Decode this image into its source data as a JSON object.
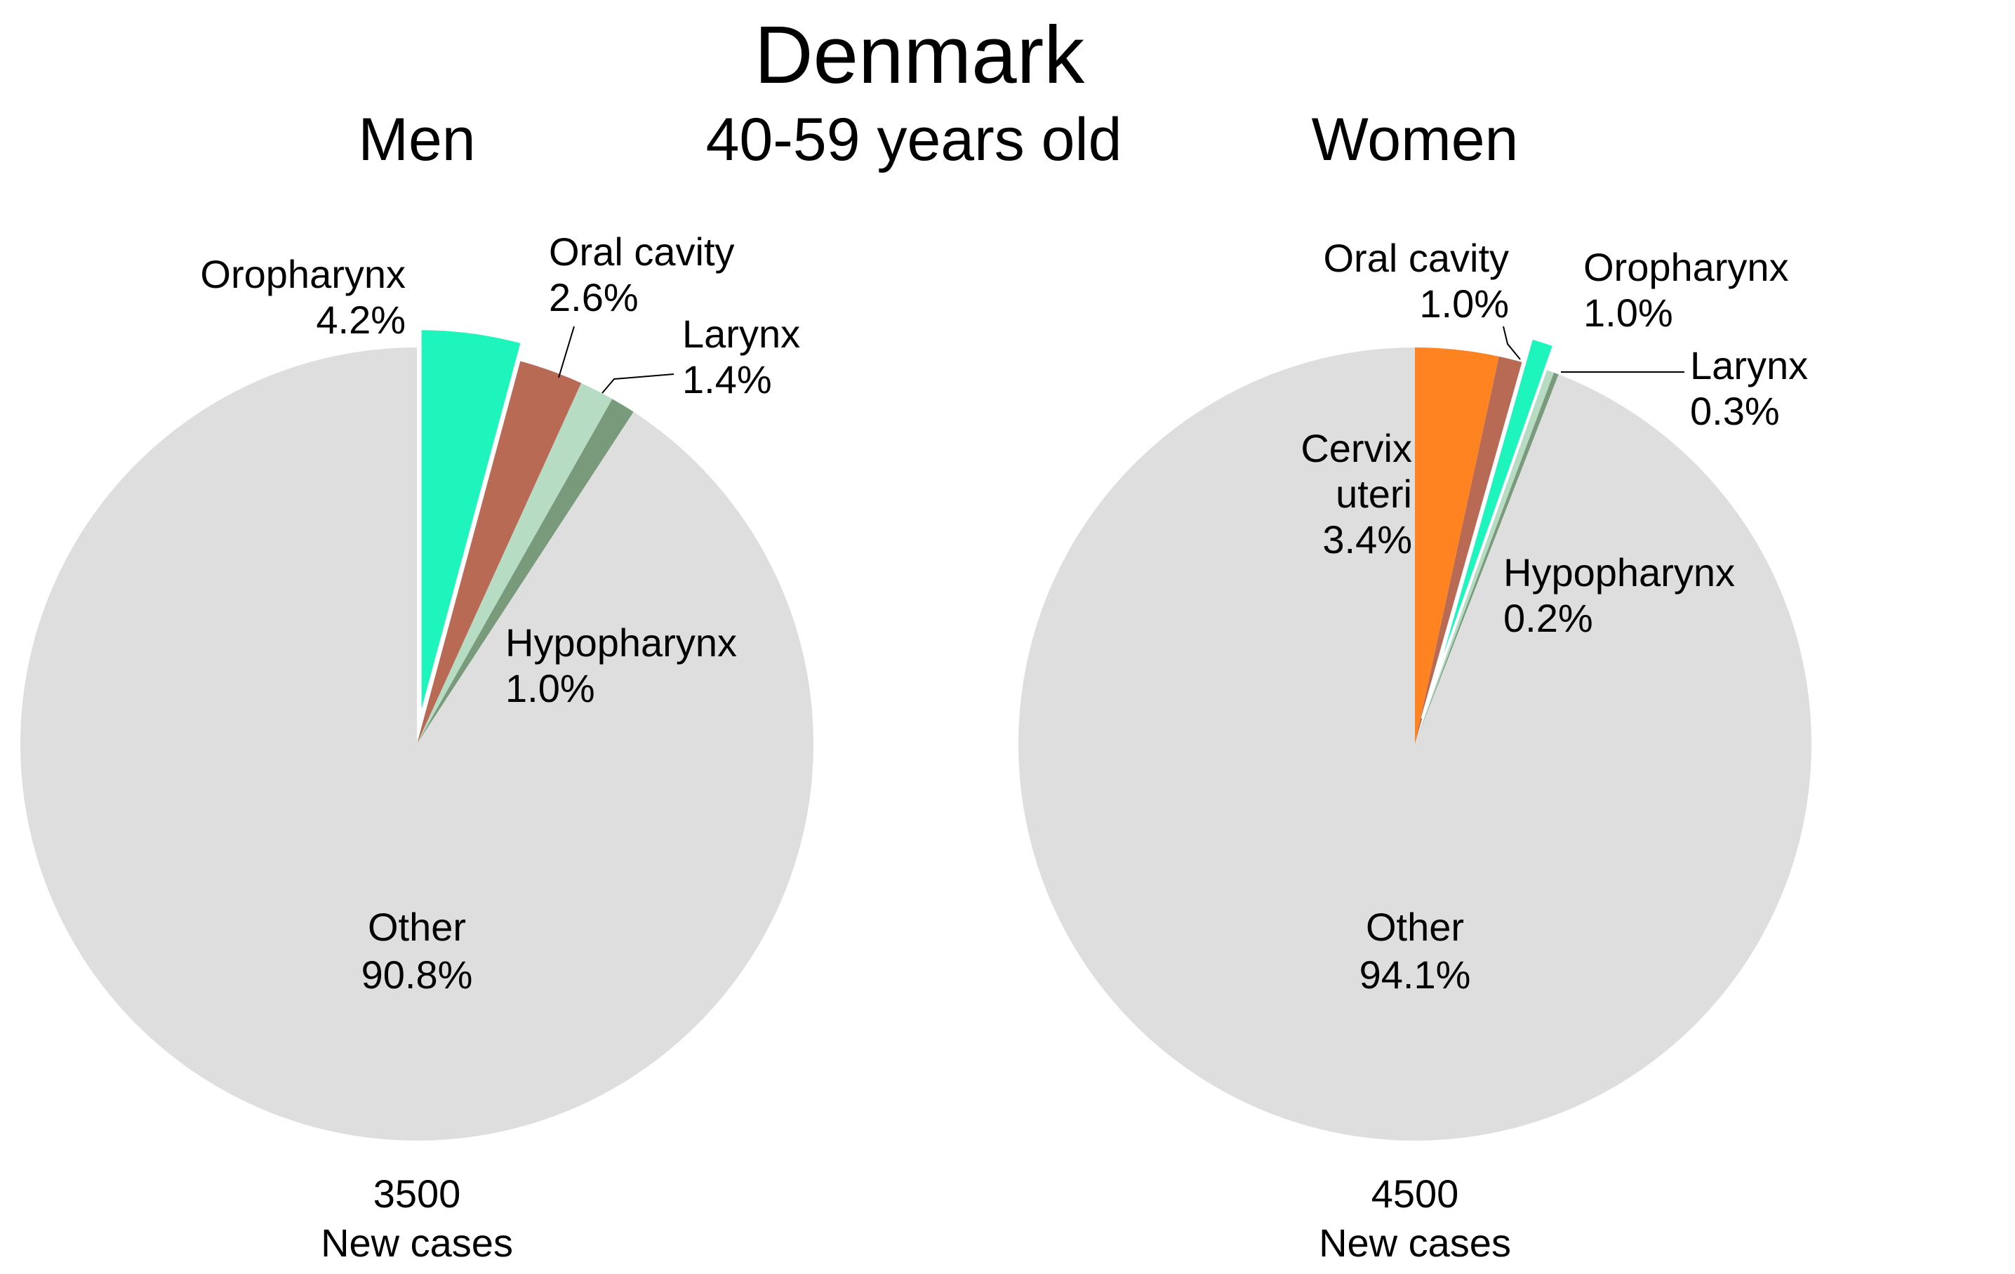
{
  "title": "Denmark",
  "subtitle": "40-59 years old",
  "colors": {
    "oropharynx": "#1df5bd",
    "oral_cavity": "#b86a55",
    "larynx": "#b7dcc4",
    "hypopharynx": "#7a9a7c",
    "cervix_uteri": "#ff8421",
    "other": "#dedede"
  },
  "chart_data": [
    {
      "type": "pie",
      "title": "Men",
      "total_label": "3500",
      "total_caption": "New cases",
      "slices": [
        {
          "name": "Oropharynx",
          "value": 4.2,
          "label": "4.2%",
          "color": "#1df5bd",
          "exploded": true
        },
        {
          "name": "Oral cavity",
          "value": 2.6,
          "label": "2.6%",
          "color": "#b86a55"
        },
        {
          "name": "Larynx",
          "value": 1.4,
          "label": "1.4%",
          "color": "#b7dcc4"
        },
        {
          "name": "Hypopharynx",
          "value": 1.0,
          "label": "1.0%",
          "color": "#7a9a7c"
        },
        {
          "name": "Other",
          "value": 90.8,
          "label": "90.8%",
          "color": "#dedede"
        }
      ]
    },
    {
      "type": "pie",
      "title": "Women",
      "total_label": "4500",
      "total_caption": "New cases",
      "slices": [
        {
          "name": "Cervix uteri",
          "label_lines": [
            "Cervix",
            "uteri"
          ],
          "value": 3.4,
          "label": "3.4%",
          "color": "#ff8421"
        },
        {
          "name": "Oral cavity",
          "value": 1.0,
          "label": "1.0%",
          "color": "#b86a55"
        },
        {
          "name": "Oropharynx",
          "value": 1.0,
          "label": "1.0%",
          "color": "#1df5bd",
          "exploded": true
        },
        {
          "name": "Larynx",
          "value": 0.3,
          "label": "0.3%",
          "color": "#b7dcc4"
        },
        {
          "name": "Hypopharynx",
          "value": 0.2,
          "label": "0.2%",
          "color": "#7a9a7c"
        },
        {
          "name": "Other",
          "value": 94.1,
          "label": "94.1%",
          "color": "#dedede"
        }
      ]
    }
  ]
}
